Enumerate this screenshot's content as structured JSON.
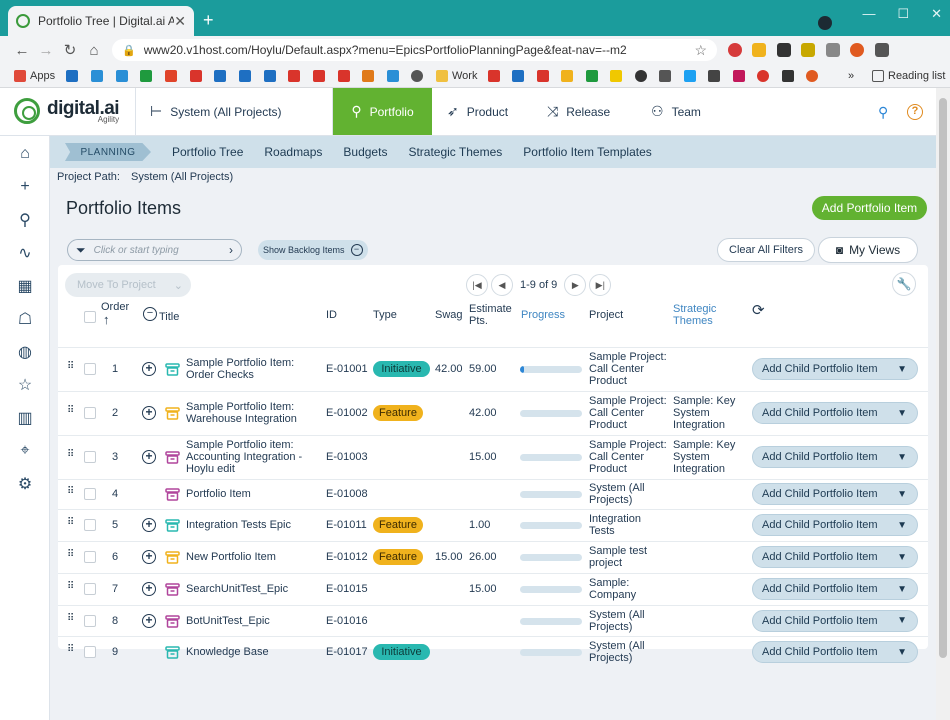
{
  "browser": {
    "tab_title": "Portfolio Tree | Digital.ai Agility",
    "url": "www20.v1host.com/Hoylu/Default.aspx?menu=EpicsPortfolioPlanningPage&feat-nav=--m2",
    "bookmarks": {
      "apps": "Apps",
      "work": "Work",
      "reading_list": "Reading list"
    }
  },
  "app": {
    "logo_brand": "digital.ai",
    "logo_sub": "Agility",
    "scope": "System (All Projects)",
    "nav": {
      "portfolio": "Portfolio",
      "product": "Product",
      "release": "Release",
      "team": "Team"
    },
    "subnav": {
      "crumb": "PLANNING",
      "items": [
        "Portfolio Tree",
        "Roadmaps",
        "Budgets",
        "Strategic Themes",
        "Portfolio Item Templates"
      ]
    },
    "project_path_label": "Project Path:",
    "project_path_value": "System (All Projects)",
    "page_title": "Portfolio Items",
    "add_button": "Add Portfolio Item",
    "filter_placeholder": "Click or start typing",
    "backlog_pill": "Show Backlog Items",
    "clear_filters": "Clear All Filters",
    "my_views": "My Views",
    "move_to_project": "Move To Project",
    "pager_text": "1-9 of 9",
    "colors": {
      "accent": "#62b231",
      "initiative": "#29b8b0",
      "feature": "#f0b21d"
    }
  },
  "table": {
    "headers": {
      "order": "Order",
      "title": "Title",
      "id": "ID",
      "type": "Type",
      "swag": "Swag",
      "estimate": "Estimate Pts.",
      "progress": "Progress",
      "project": "Project",
      "themes": "Strategic Themes"
    },
    "child_button": "Add Child Portfolio Item",
    "rows": [
      {
        "order": "1",
        "title": "Sample Portfolio Item: Order Checks",
        "id": "E-01001",
        "type": "Initiative",
        "swag": "42.00",
        "estimate": "59.00",
        "progress": 0.06,
        "project": "Sample Project: Call Center Product",
        "themes": ""
      },
      {
        "order": "2",
        "title": "Sample Portfolio Item: Warehouse Integration",
        "id": "E-01002",
        "type": "Feature",
        "swag": "",
        "estimate": "42.00",
        "progress": 0,
        "project": "Sample Project: Call Center Product",
        "themes": "Sample: Key System Integration"
      },
      {
        "order": "3",
        "title": "Sample Portfolio item: Accounting Integration - Hoylu edit",
        "id": "E-01003",
        "type": "",
        "swag": "",
        "estimate": "15.00",
        "progress": 0,
        "project": "Sample Project: Call Center Product",
        "themes": "Sample: Key System Integration"
      },
      {
        "order": "4",
        "title": "Portfolio Item",
        "id": "E-01008",
        "type": "",
        "swag": "",
        "estimate": "",
        "progress": 0,
        "project": "System (All Projects)",
        "themes": ""
      },
      {
        "order": "5",
        "title": "Integration Tests Epic",
        "id": "E-01011",
        "type": "Feature",
        "swag": "",
        "estimate": "1.00",
        "progress": 0,
        "project": "Integration Tests",
        "themes": ""
      },
      {
        "order": "6",
        "title": "New Portfolio Item",
        "id": "E-01012",
        "type": "Feature",
        "swag": "15.00",
        "estimate": "26.00",
        "progress": 0,
        "project": "Sample test project",
        "themes": ""
      },
      {
        "order": "7",
        "title": "SearchUnitTest_Epic",
        "id": "E-01015",
        "type": "",
        "swag": "",
        "estimate": "15.00",
        "progress": 0,
        "project": "Sample: Company",
        "themes": ""
      },
      {
        "order": "8",
        "title": "BotUnitTest_Epic",
        "id": "E-01016",
        "type": "",
        "swag": "",
        "estimate": "",
        "progress": 0,
        "project": "System (All Projects)",
        "themes": ""
      },
      {
        "order": "9",
        "title": "Knowledge Base",
        "id": "E-01017",
        "type": "Initiative",
        "swag": "",
        "estimate": "",
        "progress": 0,
        "project": "System (All Projects)",
        "themes": ""
      }
    ]
  }
}
